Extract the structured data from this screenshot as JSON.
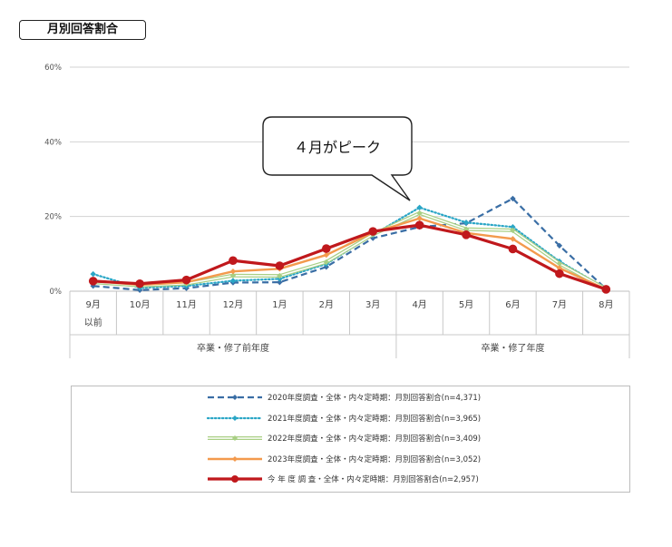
{
  "title": "月別回答割合",
  "callout": "４月がピーク",
  "chart_data": {
    "type": "line",
    "categories": [
      [
        "9月",
        "以前"
      ],
      [
        "10月"
      ],
      [
        "11月"
      ],
      [
        "12月"
      ],
      [
        "1月"
      ],
      [
        "2月"
      ],
      [
        "3月"
      ],
      [
        "4月"
      ],
      [
        "5月"
      ],
      [
        "6月"
      ],
      [
        "7月"
      ],
      [
        "8月"
      ]
    ],
    "groups": [
      {
        "label": "卒業・修了前年度",
        "from": 0,
        "to": 6
      },
      {
        "label": "卒業・修了年度",
        "from": 7,
        "to": 11
      }
    ],
    "ylim": [
      0,
      60
    ],
    "yticks": [
      0,
      20,
      40,
      60
    ],
    "ytick_labels": [
      "0%",
      "20%",
      "40%",
      "60%"
    ],
    "grid": true,
    "series": [
      {
        "name": "2020年度調査・全体・内々定時期：月別回答割合(n=4,371)",
        "values": [
          1.4,
          0.3,
          0.8,
          2.3,
          2.4,
          6.5,
          14.2,
          17.2,
          18.2,
          24.8,
          12.2,
          0.6
        ],
        "color": "#3a6ea5",
        "style": "dashed",
        "marker": "diamond"
      },
      {
        "name": "2021年度調査・全体・内々定時期：月別回答割合(n=3,965)",
        "values": [
          4.6,
          0.9,
          1.4,
          2.8,
          3.3,
          7.3,
          15.1,
          22.4,
          18.4,
          17.2,
          8.0,
          0.7
        ],
        "color": "#2aa6c6",
        "style": "dotted",
        "marker": "diamond"
      },
      {
        "name": "2022年度調査・全体・内々定時期：月別回答割合(n=3,409)",
        "values": [
          2.4,
          1.5,
          2.0,
          4.2,
          4.1,
          7.8,
          15.2,
          20.9,
          16.6,
          16.3,
          7.4,
          0.6
        ],
        "color": "#a8cf84",
        "style": "double",
        "marker": "diamond"
      },
      {
        "name": "2023年度調査・全体・内々定時期：月別回答割合(n=3,052)",
        "values": [
          2.7,
          1.7,
          2.4,
          5.3,
          6.0,
          9.7,
          15.7,
          19.5,
          15.6,
          14.0,
          6.2,
          0.5
        ],
        "color": "#f39a4d",
        "style": "solid",
        "marker": "diamond"
      },
      {
        "name": "今 年 度 調 査・全体・内々定時期：月別回答割合(n=2,957)",
        "values": [
          2.7,
          2.0,
          3.0,
          8.2,
          6.8,
          11.4,
          16.0,
          17.7,
          15.1,
          11.3,
          4.7,
          0.5
        ],
        "color": "#c0181c",
        "style": "solid-thick",
        "marker": "circle"
      }
    ]
  }
}
